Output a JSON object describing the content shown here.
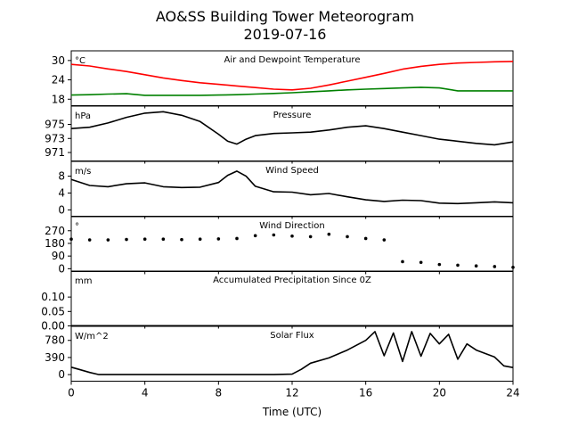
{
  "figure": {
    "title": "AO&SS Building Tower Meteorogram",
    "subtitle": "2019-07-16",
    "xlabel": "Time (UTC)"
  },
  "chart_data": [
    {
      "type": "line",
      "panel_title": "Air and Dewpoint Temperature",
      "unit": "°C",
      "xlim": [
        0,
        24
      ],
      "ylim": [
        16,
        33
      ],
      "yticks": [
        18,
        24,
        30
      ],
      "xticks": [
        0,
        4,
        8,
        12,
        16,
        20,
        24
      ],
      "series": [
        {
          "color": "#ff0000",
          "x": [
            0,
            1,
            2,
            3,
            4,
            5,
            6,
            7,
            8,
            9,
            10,
            11,
            12,
            13,
            14,
            15,
            16,
            17,
            18,
            19,
            20,
            21,
            22,
            23,
            24
          ],
          "values": [
            28.8,
            28.3,
            27.4,
            26.6,
            25.6,
            24.6,
            23.8,
            23.1,
            22.6,
            22.1,
            21.6,
            21.1,
            20.9,
            21.4,
            22.4,
            23.6,
            24.8,
            26.0,
            27.3,
            28.2,
            28.8,
            29.2,
            29.4,
            29.6,
            29.7
          ]
        },
        {
          "color": "#008000",
          "x": [
            0,
            1,
            2,
            3,
            4,
            5,
            6,
            7,
            8,
            9,
            10,
            11,
            12,
            13,
            14,
            15,
            16,
            17,
            18,
            19,
            20,
            21,
            22,
            23,
            24
          ],
          "values": [
            19.3,
            19.4,
            19.6,
            19.7,
            19.2,
            19.2,
            19.2,
            19.2,
            19.3,
            19.4,
            19.6,
            19.8,
            20.0,
            20.3,
            20.6,
            20.9,
            21.1,
            21.3,
            21.5,
            21.7,
            21.5,
            20.6,
            20.6,
            20.6,
            20.6
          ]
        }
      ]
    },
    {
      "type": "line",
      "panel_title": "Pressure",
      "unit": "hPa",
      "xlim": [
        0,
        24
      ],
      "ylim": [
        969.8,
        977.6
      ],
      "yticks": [
        971,
        973,
        975
      ],
      "series": [
        {
          "color": "#000000",
          "x": [
            0,
            1,
            2,
            3,
            4,
            5,
            6,
            7,
            8,
            8.5,
            9,
            9.5,
            10,
            11,
            12,
            13,
            14,
            15,
            16,
            17,
            18,
            19,
            20,
            21,
            22,
            23,
            24
          ],
          "values": [
            974.4,
            974.6,
            975.2,
            976.0,
            976.6,
            976.8,
            976.3,
            975.4,
            973.6,
            972.6,
            972.2,
            972.9,
            973.4,
            973.7,
            973.8,
            973.9,
            974.2,
            974.6,
            974.8,
            974.4,
            973.9,
            973.4,
            972.9,
            972.6,
            972.3,
            972.1,
            972.5
          ]
        }
      ]
    },
    {
      "type": "line",
      "panel_title": "Wind Speed",
      "unit": "m/s",
      "xlim": [
        0,
        24
      ],
      "ylim": [
        -1.5,
        11.5
      ],
      "yticks": [
        0,
        4,
        8
      ],
      "series": [
        {
          "color": "#000000",
          "x": [
            0,
            1,
            2,
            3,
            4,
            5,
            6,
            7,
            8,
            8.5,
            9,
            9.5,
            10,
            11,
            12,
            13,
            14,
            15,
            16,
            17,
            18,
            19,
            20,
            21,
            22,
            23,
            24
          ],
          "values": [
            7.2,
            5.8,
            5.5,
            6.2,
            6.4,
            5.5,
            5.3,
            5.4,
            6.5,
            8.2,
            9.2,
            8.0,
            5.6,
            4.3,
            4.2,
            3.6,
            3.9,
            3.1,
            2.4,
            2.0,
            2.3,
            2.2,
            1.6,
            1.5,
            1.7,
            1.9,
            1.7
          ]
        }
      ]
    },
    {
      "type": "scatter",
      "panel_title": "Wind Direction",
      "unit": "°",
      "xlim": [
        0,
        24
      ],
      "ylim": [
        -20,
        370
      ],
      "yticks": [
        0,
        90,
        180,
        270
      ],
      "series": [
        {
          "color": "#000000",
          "x": [
            0,
            1,
            2,
            3,
            4,
            5,
            6,
            7,
            8,
            9,
            10,
            11,
            12,
            13,
            14,
            15,
            16,
            17,
            18,
            19,
            20,
            21,
            22,
            23,
            24
          ],
          "values": [
            210,
            205,
            205,
            208,
            210,
            210,
            207,
            210,
            212,
            215,
            235,
            240,
            232,
            228,
            245,
            228,
            215,
            205,
            50,
            45,
            30,
            25,
            20,
            15,
            10
          ]
        }
      ]
    },
    {
      "type": "line",
      "panel_title": "Accumulated Precipitation Since 0Z",
      "unit": "mm",
      "xlim": [
        0,
        24
      ],
      "ylim": [
        0,
        0.19
      ],
      "yticks": [
        0.0,
        0.05,
        0.1
      ],
      "series": [
        {
          "color": "#000000",
          "x": [
            0,
            24
          ],
          "values": [
            0,
            0
          ]
        }
      ]
    },
    {
      "type": "line",
      "panel_title": "Solar Flux",
      "unit": "W/m^2",
      "xlim": [
        0,
        24
      ],
      "ylim": [
        -150,
        1100
      ],
      "yticks": [
        0,
        390,
        780
      ],
      "series": [
        {
          "color": "#000000",
          "x": [
            0,
            0.5,
            1,
            1.5,
            2,
            6,
            10,
            11,
            12,
            12.5,
            13,
            14,
            15,
            16,
            16.5,
            17,
            17.5,
            18,
            18.5,
            19,
            19.5,
            20,
            20.5,
            21,
            21.5,
            22,
            23,
            23.5,
            24
          ],
          "values": [
            170,
            110,
            50,
            0,
            0,
            0,
            0,
            0,
            10,
            120,
            260,
            380,
            560,
            780,
            980,
            430,
            950,
            300,
            980,
            420,
            940,
            700,
            920,
            350,
            700,
            560,
            400,
            200,
            160
          ]
        }
      ]
    }
  ]
}
